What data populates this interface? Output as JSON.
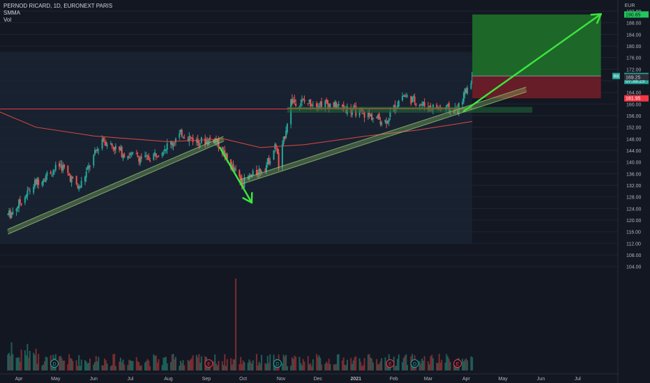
{
  "header": {
    "symbol_line": "PERNOD RICARD, 1D, EURONEXT PARIS",
    "indicator_1": "SMMA",
    "indicator_2": "Vol"
  },
  "price_axis": {
    "currency": "EUR",
    "tick_labels": [
      "192.00",
      "188.00",
      "184.00",
      "180.00",
      "176.00",
      "172.00",
      "168.00",
      "164.00",
      "160.00",
      "156.00",
      "152.00",
      "148.00",
      "144.00",
      "140.00",
      "136.00",
      "132.00",
      "128.00",
      "124.00",
      "120.00",
      "116.00",
      "112.00",
      "108.00",
      "104.00"
    ]
  },
  "time_axis": {
    "labels": [
      "Apr",
      "May",
      "Jun",
      "Jul",
      "Aug",
      "Sep",
      "Oct",
      "Nov",
      "Dec",
      "2021",
      "Feb",
      "Mar",
      "Apr",
      "May",
      "Jun",
      "Jul"
    ]
  },
  "price_tags": {
    "target": "190.85",
    "current": "169.65",
    "countdown": "07:39:25",
    "mid": "169.25",
    "stop": "161.95",
    "current_badge": "R8"
  },
  "event_markers": [
    "D",
    "E",
    "D",
    "E",
    "D",
    "E"
  ],
  "colors": {
    "background": "#131722",
    "up": "#26a69a",
    "down": "#ef5350",
    "profit_zone": "#1e6b2a",
    "loss_zone": "#6b1e28",
    "arrow": "#3de43d",
    "resistance_line": "#f23645",
    "smma": "#e0493f",
    "trend_band": "#8fbf6a",
    "axis_text": "#b2b5be",
    "target_tag": "#22c55e",
    "current_tag": "#26a69a",
    "stop_tag": "#f23645"
  },
  "chart_data": {
    "type": "candlestick",
    "title": "PERNOD RICARD, 1D, EURONEXT PARIS",
    "ylim": [
      102,
      193
    ],
    "price_path": [
      {
        "date": "2020-03-25",
        "price": 122
      },
      {
        "date": "2020-04-15",
        "price": 133
      },
      {
        "date": "2020-05-05",
        "price": 139
      },
      {
        "date": "2020-05-20",
        "price": 131
      },
      {
        "date": "2020-06-08",
        "price": 148
      },
      {
        "date": "2020-06-25",
        "price": 143
      },
      {
        "date": "2020-07-15",
        "price": 141
      },
      {
        "date": "2020-08-05",
        "price": 147
      },
      {
        "date": "2020-08-12",
        "price": 150
      },
      {
        "date": "2020-08-25",
        "price": 147
      },
      {
        "date": "2020-09-08",
        "price": 148
      },
      {
        "date": "2020-09-22",
        "price": 138
      },
      {
        "date": "2020-10-01",
        "price": 133
      },
      {
        "date": "2020-10-20",
        "price": 139
      },
      {
        "date": "2020-10-28",
        "price": 146
      },
      {
        "date": "2020-10-30",
        "price": 138
      },
      {
        "date": "2020-11-09",
        "price": 161
      },
      {
        "date": "2020-12-10",
        "price": 160
      },
      {
        "date": "2021-01-05",
        "price": 157
      },
      {
        "date": "2021-01-25",
        "price": 154
      },
      {
        "date": "2021-02-08",
        "price": 163
      },
      {
        "date": "2021-03-01",
        "price": 159
      },
      {
        "date": "2021-03-25",
        "price": 158
      },
      {
        "date": "2021-04-06",
        "price": 169.65
      }
    ],
    "smma_path": [
      {
        "date": "2020-03-01",
        "price": 160
      },
      {
        "date": "2020-04-15",
        "price": 152
      },
      {
        "date": "2020-06-01",
        "price": 149
      },
      {
        "date": "2020-08-01",
        "price": 147
      },
      {
        "date": "2020-09-15",
        "price": 148
      },
      {
        "date": "2020-10-15",
        "price": 145
      },
      {
        "date": "2020-11-20",
        "price": 146
      },
      {
        "date": "2021-01-10",
        "price": 149
      },
      {
        "date": "2021-02-20",
        "price": 151
      },
      {
        "date": "2021-04-06",
        "price": 154
      }
    ],
    "resistance_level": 158.3,
    "support_zone": [
      157,
      159
    ],
    "trendlines": [
      {
        "from": {
          "date": "2020-03-23",
          "price": 116
        },
        "to": {
          "date": "2020-09-15",
          "price": 148
        }
      },
      {
        "from": {
          "date": "2020-09-28",
          "price": 133
        },
        "to": {
          "date": "2021-05-20",
          "price": 165
        }
      }
    ],
    "arrows": [
      {
        "from": {
          "date": "2020-09-12",
          "price": 145
        },
        "to": {
          "date": "2020-10-08",
          "price": 126
        }
      },
      {
        "from": {
          "date": "2021-03-30",
          "price": 157.5
        },
        "to": {
          "date": "2021-07-20",
          "price": 191
        }
      }
    ],
    "position": {
      "entry": 169.65,
      "target": 190.85,
      "stop": 161.95,
      "start_date": "2021-04-06",
      "end_date": "2021-07-20"
    },
    "volume_spike_date": "2020-09-25"
  }
}
